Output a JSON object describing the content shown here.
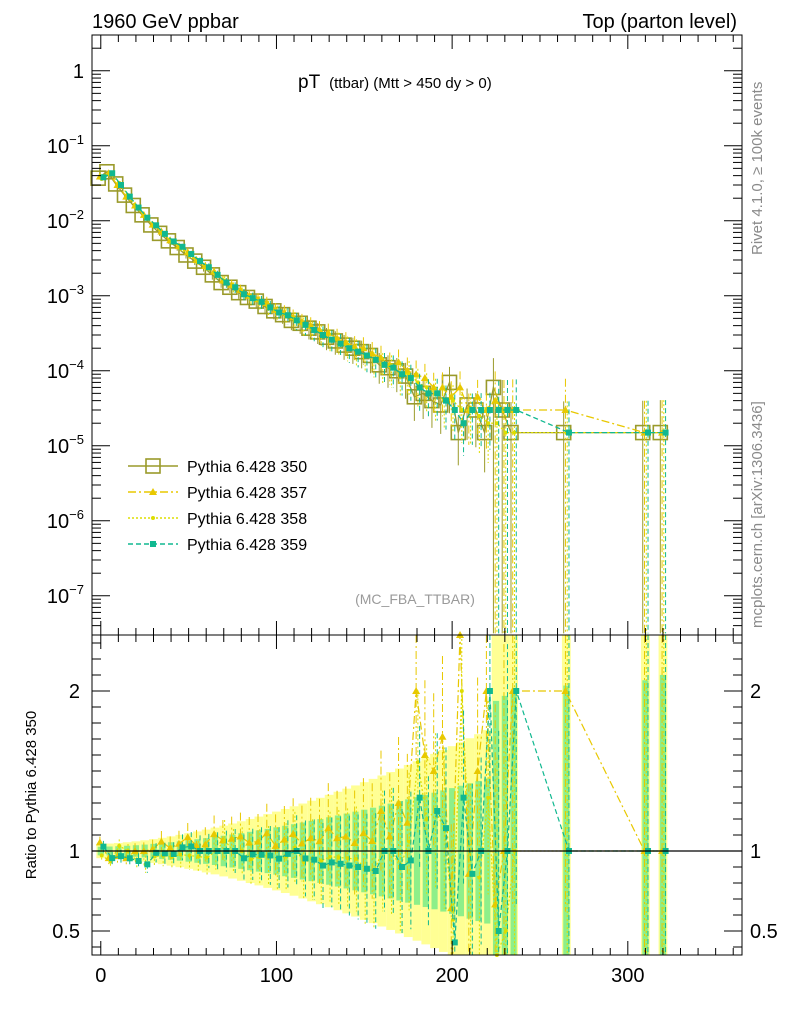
{
  "header": {
    "left": "1960 GeV ppbar",
    "right": "Top (parton level)"
  },
  "side_labels": {
    "rivet": "Rivet 4.1.0, ≥ 100k events",
    "mcplots": "mcplots.cern.ch [arXiv:1306.3436]"
  },
  "chart_data": {
    "type": "line",
    "title_main": "pT",
    "title_sub": "(ttbar) (Mtt > 450 dy > 0)",
    "analysis_tag": "(MC_FBA_TTBAR)",
    "xlim": [
      -5,
      365
    ],
    "x_ticks": [
      "0",
      "100",
      "200",
      "300"
    ],
    "top": {
      "yscale": "log",
      "ylim": [
        3e-08,
        3
      ],
      "y_ticks": [
        {
          "base": "10",
          "exp": "−7",
          "value": 1e-07
        },
        {
          "base": "10",
          "exp": "−6",
          "value": 1e-06
        },
        {
          "base": "10",
          "exp": "−5",
          "value": 1e-05
        },
        {
          "base": "10",
          "exp": "−4",
          "value": 0.0001
        },
        {
          "base": "10",
          "exp": "−3",
          "value": 0.001
        },
        {
          "base": "10",
          "exp": "−2",
          "value": 0.01
        },
        {
          "base": "10",
          "exp": "−1",
          "value": 0.1
        },
        {
          "base": "1",
          "exp": "",
          "value": 1
        }
      ]
    },
    "ratio": {
      "ylabel": "Ratio to Pythia 6.428 350",
      "ylim": [
        0.35,
        2.35
      ],
      "y_ticks": [
        "0.5",
        "1",
        "2"
      ]
    },
    "x": [
      0,
      5,
      10,
      15,
      20,
      25,
      30,
      35,
      40,
      45,
      50,
      55,
      60,
      65,
      70,
      75,
      80,
      85,
      90,
      95,
      100,
      105,
      110,
      115,
      120,
      125,
      130,
      135,
      140,
      145,
      150,
      155,
      160,
      165,
      170,
      175,
      180,
      185,
      190,
      195,
      200,
      205,
      210,
      215,
      220,
      225,
      230,
      235,
      265,
      310,
      320
    ],
    "series": [
      {
        "name": "Pythia 6.428 350",
        "color": "#9a9a2a",
        "marker": "open-square",
        "dash": "",
        "values": [
          0.037,
          0.045,
          0.031,
          0.022,
          0.016,
          0.012,
          0.0088,
          0.0068,
          0.0054,
          0.0044,
          0.0035,
          0.0029,
          0.0024,
          0.0019,
          0.0015,
          0.0013,
          0.0011,
          0.00095,
          0.00085,
          0.00072,
          0.00063,
          0.00056,
          0.00047,
          0.00043,
          0.00037,
          0.00033,
          0.00028,
          0.00025,
          0.00022,
          0.0002,
          0.00018,
          0.00016,
          0.00012,
          0.00011,
          0.0001,
          8.5e-05,
          4.5e-05,
          5e-05,
          4e-05,
          3.5e-05,
          7e-05,
          1.5e-05,
          3.5e-05,
          3e-05,
          1.5e-05,
          6e-05,
          3e-05,
          1.5e-05,
          1.5e-05,
          1.5e-05,
          1.5e-05
        ]
      },
      {
        "name": "Pythia 6.428 357",
        "color": "#e8c800",
        "marker": "triangle",
        "dash": "8,3,2,3",
        "values": [
          0.039,
          0.043,
          0.03,
          0.021,
          0.016,
          0.012,
          0.0089,
          0.0072,
          0.0055,
          0.0046,
          0.0038,
          0.003,
          0.0025,
          0.0021,
          0.0016,
          0.0014,
          0.0012,
          0.001,
          0.0009,
          0.0008,
          0.00065,
          0.0006,
          0.00052,
          0.00045,
          0.0004,
          0.00035,
          0.00032,
          0.00027,
          0.00024,
          0.00021,
          0.0002,
          0.00017,
          0.00015,
          0.00012,
          0.00013,
          0.0001,
          9e-05,
          8e-05,
          6e-05,
          6e-05,
          4.5e-05,
          6e-05,
          3e-05,
          4.5e-05,
          3e-05,
          4e-05,
          3e-05,
          3e-05,
          3e-05,
          1.5e-05,
          1.5e-05
        ]
      },
      {
        "name": "Pythia 6.428 358",
        "color": "#dddd00",
        "marker": "dot",
        "dash": "2,2",
        "values": [
          0.036,
          0.042,
          0.032,
          0.022,
          0.015,
          0.011,
          0.0085,
          0.0066,
          0.0052,
          0.0043,
          0.0034,
          0.0028,
          0.0023,
          0.0019,
          0.0016,
          0.0013,
          0.0011,
          0.0009,
          0.00082,
          0.0007,
          0.0006,
          0.00054,
          0.00048,
          0.0004,
          0.00035,
          0.00031,
          0.00027,
          0.00024,
          0.00021,
          0.00019,
          0.00016,
          0.00014,
          0.00012,
          0.00011,
          9e-05,
          9e-05,
          7e-05,
          6e-05,
          5e-05,
          4e-05,
          4e-05,
          3e-05,
          3e-05,
          2.5e-05,
          2e-05,
          2e-05,
          1.5e-05,
          1.5e-05,
          1.5e-05,
          1.5e-05,
          1.5e-05
        ]
      },
      {
        "name": "Pythia 6.428 359",
        "color": "#10b890",
        "marker": "filled-square",
        "dash": "5,3",
        "values": [
          0.038,
          0.043,
          0.03,
          0.021,
          0.015,
          0.011,
          0.0087,
          0.0067,
          0.0053,
          0.0045,
          0.0036,
          0.0029,
          0.0024,
          0.0019,
          0.0015,
          0.0013,
          0.00105,
          0.00093,
          0.00083,
          0.0007,
          0.0006,
          0.00055,
          0.00047,
          0.00041,
          0.00035,
          0.0003,
          0.00026,
          0.00023,
          0.0002,
          0.00018,
          0.00016,
          0.00014,
          0.00012,
          0.00011,
          9e-05,
          8e-05,
          6e-05,
          5e-05,
          5e-05,
          4e-05,
          3e-05,
          2e-05,
          3e-05,
          3e-05,
          3e-05,
          3e-05,
          3e-05,
          3e-05,
          1.5e-05,
          1.5e-05,
          1.5e-05
        ]
      }
    ]
  }
}
